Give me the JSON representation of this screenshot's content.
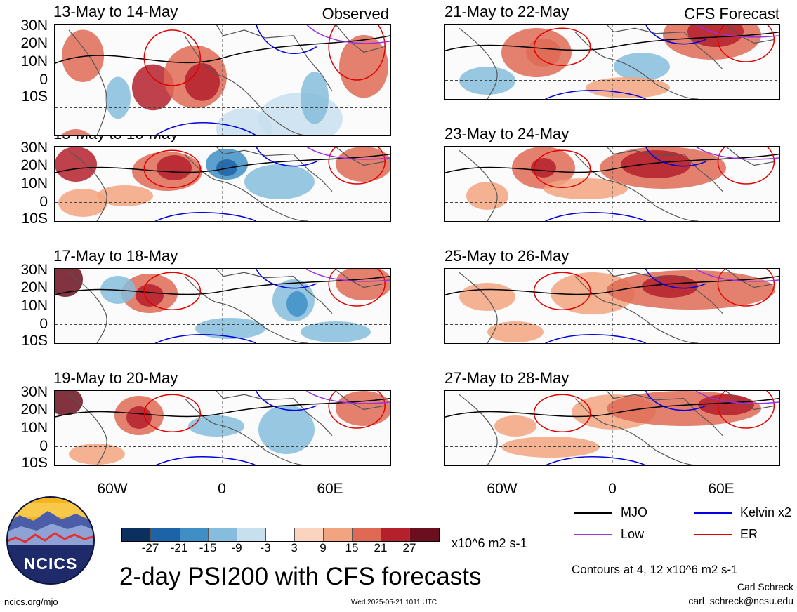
{
  "header": {
    "left_label": "Observed",
    "right_label": "CFS Forecast"
  },
  "panels_left": [
    {
      "period": "13-May to 14-May"
    },
    {
      "period": "15-May to 16-May"
    },
    {
      "period": "17-May to 18-May"
    },
    {
      "period": "19-May to 20-May"
    }
  ],
  "panels_right": [
    {
      "period": "21-May to 22-May"
    },
    {
      "period": "23-May to 24-May"
    },
    {
      "period": "25-May to 26-May"
    },
    {
      "period": "27-May to 28-May"
    }
  ],
  "lat_labels": [
    "30N",
    "20N",
    "10N",
    "0",
    "10S"
  ],
  "lon_labels": [
    "60W",
    "0",
    "60E"
  ],
  "colorbar": {
    "ticks": [
      "-27",
      "-21",
      "-15",
      "-9",
      "-3",
      "3",
      "9",
      "15",
      "21",
      "27"
    ],
    "colors": [
      "#0b3060",
      "#1d63a8",
      "#3f8fc6",
      "#86bddc",
      "#c8e0ee",
      "#ffffff",
      "#fbd4bf",
      "#f2a480",
      "#de6a55",
      "#b4202c",
      "#6b0f1f"
    ],
    "units": "x10^6 m2 s-1"
  },
  "legend": {
    "items": [
      {
        "label": "MJO",
        "color": "#000000"
      },
      {
        "label": "Kelvin x2",
        "color": "#0000e0"
      },
      {
        "label": "Low",
        "color": "#9a30e0"
      },
      {
        "label": "ER",
        "color": "#e00000"
      }
    ],
    "contours_note": "Contours at 4, 12 x10^6 m2 s-1",
    "author": "Carl Schreck",
    "email": "carl_schreck@ncsu.edu"
  },
  "footer": {
    "title": "2-day PSI200 with CFS forecasts",
    "url": "ncics.org/mjo",
    "timestamp": "Wed 2025-05-21 1011 UTC",
    "logo_text": "NCICS"
  }
}
